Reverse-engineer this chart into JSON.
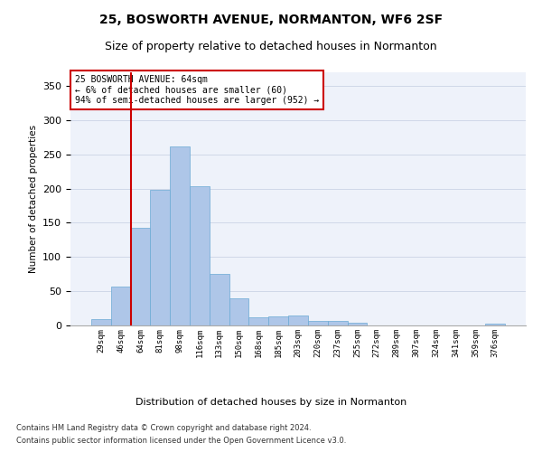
{
  "title": "25, BOSWORTH AVENUE, NORMANTON, WF6 2SF",
  "subtitle": "Size of property relative to detached houses in Normanton",
  "xlabel": "Distribution of detached houses by size in Normanton",
  "ylabel": "Number of detached properties",
  "bar_color": "#aec6e8",
  "bar_edge_color": "#6aaad4",
  "grid_color": "#d0d8e8",
  "vline_color": "#cc0000",
  "vline_x": 2,
  "annotation_box": {
    "text": "25 BOSWORTH AVENUE: 64sqm\n← 6% of detached houses are smaller (60)\n94% of semi-detached houses are larger (952) →"
  },
  "categories": [
    "29sqm",
    "46sqm",
    "64sqm",
    "81sqm",
    "98sqm",
    "116sqm",
    "133sqm",
    "150sqm",
    "168sqm",
    "185sqm",
    "203sqm",
    "220sqm",
    "237sqm",
    "255sqm",
    "272sqm",
    "289sqm",
    "307sqm",
    "324sqm",
    "341sqm",
    "359sqm",
    "376sqm"
  ],
  "values": [
    9,
    57,
    143,
    198,
    261,
    204,
    75,
    40,
    12,
    13,
    14,
    6,
    7,
    4,
    0,
    0,
    0,
    0,
    0,
    0,
    3
  ],
  "ylim": [
    0,
    370
  ],
  "yticks": [
    0,
    50,
    100,
    150,
    200,
    250,
    300,
    350
  ],
  "footer1": "Contains HM Land Registry data © Crown copyright and database right 2024.",
  "footer2": "Contains public sector information licensed under the Open Government Licence v3.0.",
  "bg_color": "#eef2fa",
  "title_fontsize": 10,
  "subtitle_fontsize": 9
}
